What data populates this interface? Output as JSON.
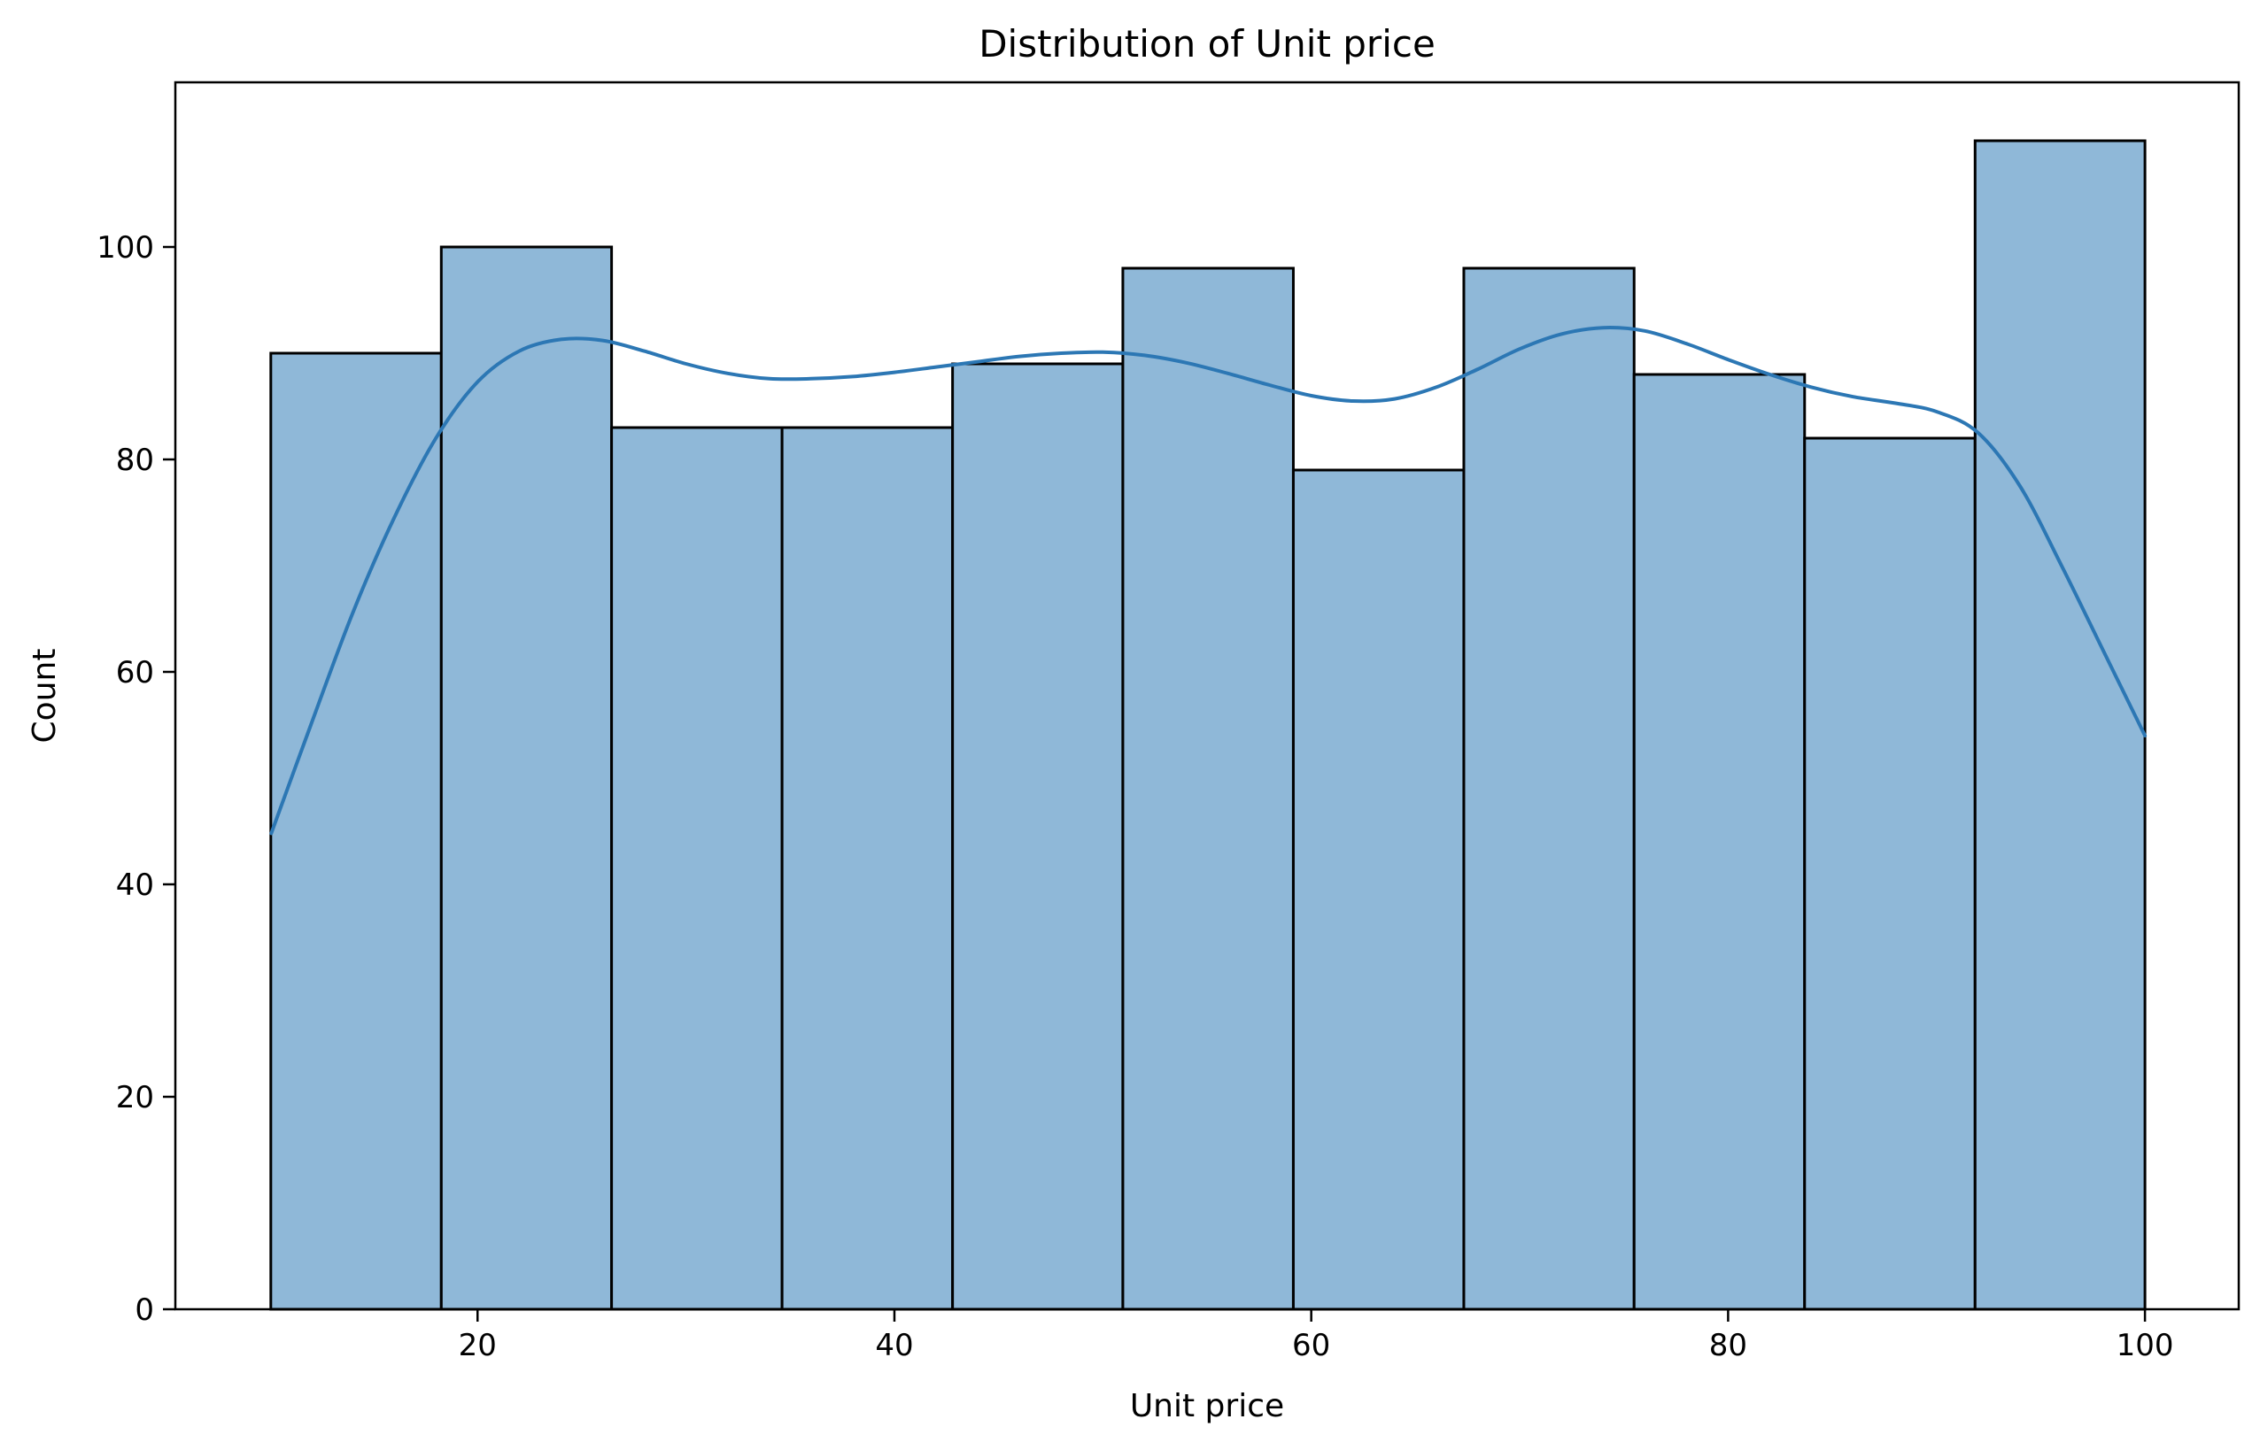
{
  "chart_data": {
    "type": "bar",
    "title": "Distribution of Unit price",
    "xlabel": "Unit price",
    "ylabel": "Count",
    "xlim": [
      5.5,
      104.5
    ],
    "ylim": [
      0,
      115.5
    ],
    "xticks": [
      20,
      40,
      60,
      80,
      100
    ],
    "yticks": [
      0,
      20,
      40,
      60,
      80,
      100
    ],
    "grid": false,
    "bins": [
      {
        "x0": 10.08,
        "x1": 18.26,
        "count": 90
      },
      {
        "x0": 18.26,
        "x1": 26.43,
        "count": 100
      },
      {
        "x0": 26.43,
        "x1": 34.61,
        "count": 83
      },
      {
        "x0": 34.61,
        "x1": 42.79,
        "count": 83
      },
      {
        "x0": 42.79,
        "x1": 50.96,
        "count": 89
      },
      {
        "x0": 50.96,
        "x1": 59.14,
        "count": 98
      },
      {
        "x0": 59.14,
        "x1": 67.32,
        "count": 79
      },
      {
        "x0": 67.32,
        "x1": 75.49,
        "count": 98
      },
      {
        "x0": 75.49,
        "x1": 83.67,
        "count": 88
      },
      {
        "x0": 83.67,
        "x1": 91.85,
        "count": 82
      },
      {
        "x0": 91.85,
        "x1": 100.0,
        "count": 110
      }
    ],
    "kde": {
      "x": [
        10.1,
        12,
        14,
        16,
        18,
        20,
        22,
        24,
        26,
        28,
        30,
        32,
        34,
        36,
        38,
        40,
        42,
        44,
        46,
        48,
        50,
        52,
        54,
        56,
        58,
        60,
        62,
        64,
        66,
        68,
        70,
        72,
        74,
        76,
        78,
        80,
        82,
        84,
        86,
        88,
        90,
        92,
        94,
        96,
        98,
        100
      ],
      "y": [
        44.8,
        55,
        65.5,
        74.5,
        82,
        87.3,
        90.2,
        91.3,
        91.2,
        90.2,
        89,
        88.1,
        87.6,
        87.6,
        87.8,
        88.2,
        88.7,
        89.2,
        89.7,
        90,
        90.1,
        89.8,
        89.1,
        88.1,
        87,
        86,
        85.5,
        85.7,
        86.8,
        88.5,
        90.4,
        91.8,
        92.4,
        92.1,
        90.9,
        89.4,
        88,
        86.8,
        85.9,
        85.3,
        84.5,
        82.5,
        77.5,
        70,
        62,
        54
      ]
    },
    "colors": {
      "bar_fill": "#8fb8d8",
      "bar_edge": "#000000",
      "kde_line": "#2c77b4"
    }
  }
}
